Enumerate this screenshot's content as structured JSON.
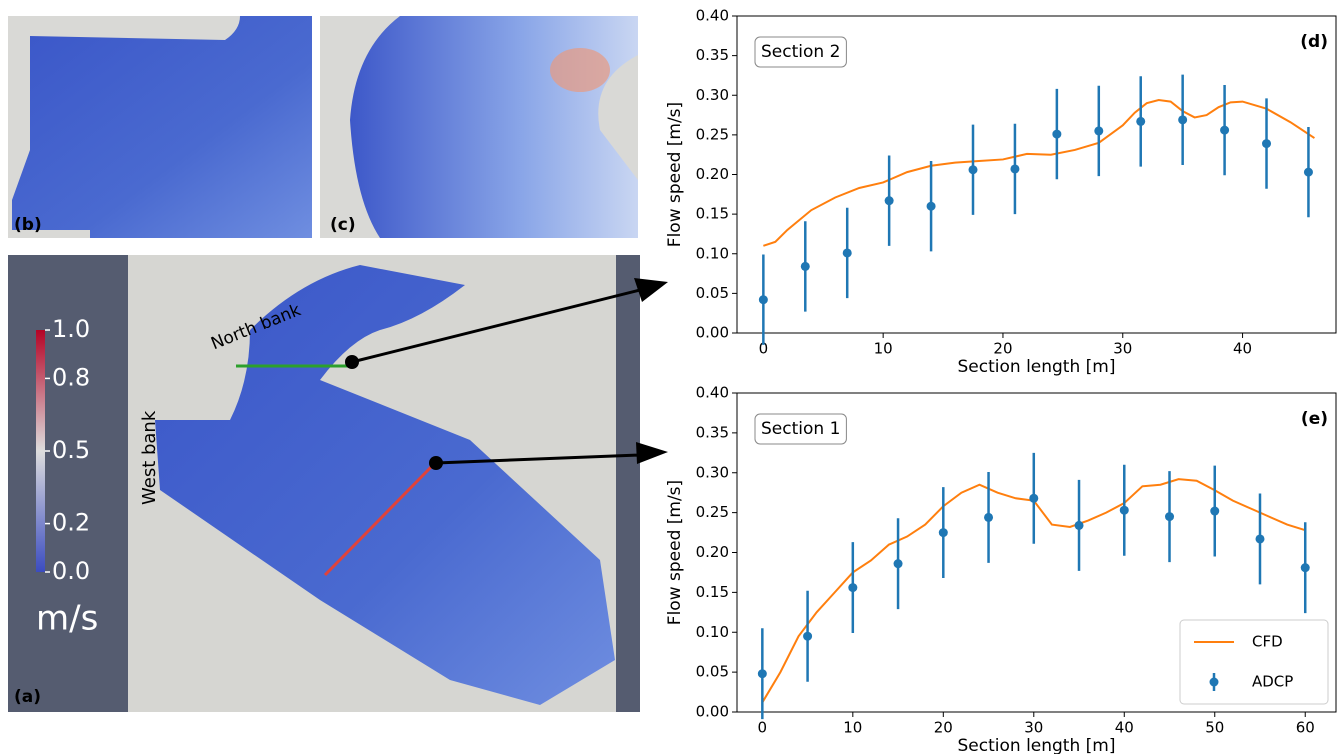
{
  "figure": {
    "panel_labels": [
      "(a)",
      "(b)",
      "(c)"
    ],
    "bank_labels": [
      "North bank",
      "West bank"
    ],
    "colorbar": {
      "lim": [
        0,
        1
      ],
      "unit": "m/s",
      "ticks": [
        {
          "value": 1,
          "label": "1.0"
        },
        0.8,
        0.5,
        0.2,
        {
          "value": 0,
          "label": "0.0"
        }
      ]
    }
  },
  "chart_data": [
    {
      "type": "line",
      "panel": "(d)",
      "annotation": "Section 2",
      "xlabel": "Section length [m]",
      "ylabel": "Flow speed [m/s]",
      "xlim": [
        -2.2,
        47.8
      ],
      "xticks": [
        0,
        10,
        20,
        30,
        40
      ],
      "ylim": [
        0,
        0.4
      ],
      "yticks": [
        {
          "value": 0,
          "label": "0.00"
        },
        0.05,
        {
          "value": 0.1,
          "label": "0.10"
        },
        0.15,
        {
          "value": 0.2,
          "label": "0.20"
        },
        0.25,
        {
          "value": 0.3,
          "label": "0.30"
        },
        0.35,
        {
          "value": 0.4,
          "label": "0.40"
        }
      ],
      "series": [
        {
          "color": "#ff7f0e",
          "x": [
            0,
            1,
            2,
            4,
            6,
            8,
            10,
            12,
            14,
            16,
            18,
            20,
            22,
            24,
            26,
            28,
            30,
            31,
            32,
            33,
            34,
            35,
            36,
            37,
            38,
            39,
            40,
            42,
            44,
            46
          ],
          "values": [
            0.11,
            0.115,
            0.13,
            0.155,
            0.171,
            0.183,
            0.19,
            0.203,
            0.211,
            0.215,
            0.217,
            0.219,
            0.226,
            0.225,
            0.231,
            0.24,
            0.262,
            0.278,
            0.29,
            0.294,
            0.292,
            0.28,
            0.272,
            0.275,
            0.285,
            0.291,
            0.292,
            0.283,
            0.266,
            0.246
          ]
        },
        {
          "color": "#1f77b4",
          "x": [
            0,
            3.5,
            7,
            10.5,
            14,
            17.5,
            21,
            24.5,
            28,
            31.5,
            35,
            38.5,
            42,
            45.5
          ],
          "values": [
            0.042,
            0.084,
            0.101,
            0.167,
            0.16,
            0.206,
            0.207,
            0.251,
            0.255,
            0.267,
            0.269,
            0.256,
            0.239,
            0.203
          ],
          "errors": [
            0.057,
            0.057,
            0.057,
            0.057,
            0.057,
            0.057,
            0.057,
            0.057,
            0.057,
            0.057,
            0.057,
            0.057,
            0.057,
            0.057
          ]
        }
      ]
    },
    {
      "type": "line",
      "panel": "(e)",
      "annotation": "Section 1",
      "xlabel": "Section length [m]",
      "ylabel": "Flow speed [m/s]",
      "xlim": [
        -2.8,
        63.4
      ],
      "xticks": [
        0,
        10,
        20,
        30,
        40,
        50,
        60
      ],
      "ylim": [
        0,
        0.4
      ],
      "yticks": [
        {
          "value": 0,
          "label": "0.00"
        },
        0.05,
        {
          "value": 0.1,
          "label": "0.10"
        },
        0.15,
        {
          "value": 0.2,
          "label": "0.20"
        },
        0.25,
        {
          "value": 0.3,
          "label": "0.30"
        },
        0.35,
        {
          "value": 0.4,
          "label": "0.40"
        }
      ],
      "legend": "lower right",
      "series": [
        {
          "name": "CFD",
          "color": "#ff7f0e",
          "x": [
            0,
            2,
            4,
            6,
            8,
            10,
            12,
            14,
            16,
            18,
            20,
            22,
            24,
            26,
            28,
            30,
            32,
            34,
            36,
            38,
            40,
            42,
            44,
            46,
            48,
            50,
            52,
            54,
            56,
            58,
            60
          ],
          "values": [
            0.012,
            0.05,
            0.095,
            0.125,
            0.15,
            0.175,
            0.19,
            0.21,
            0.22,
            0.235,
            0.258,
            0.275,
            0.285,
            0.275,
            0.268,
            0.265,
            0.235,
            0.232,
            0.24,
            0.25,
            0.262,
            0.283,
            0.285,
            0.292,
            0.29,
            0.278,
            0.265,
            0.255,
            0.245,
            0.235,
            0.228
          ]
        },
        {
          "name": "ADCP",
          "color": "#1f77b4",
          "x": [
            0,
            5,
            10,
            15,
            20,
            25,
            30,
            35,
            40,
            45,
            50,
            55,
            60
          ],
          "values": [
            0.048,
            0.095,
            0.156,
            0.186,
            0.225,
            0.244,
            0.268,
            0.234,
            0.253,
            0.245,
            0.252,
            0.217,
            0.181
          ],
          "errors": [
            0.057,
            0.057,
            0.057,
            0.057,
            0.057,
            0.057,
            0.057,
            0.057,
            0.057,
            0.057,
            0.057,
            0.057,
            0.057
          ]
        }
      ]
    }
  ]
}
